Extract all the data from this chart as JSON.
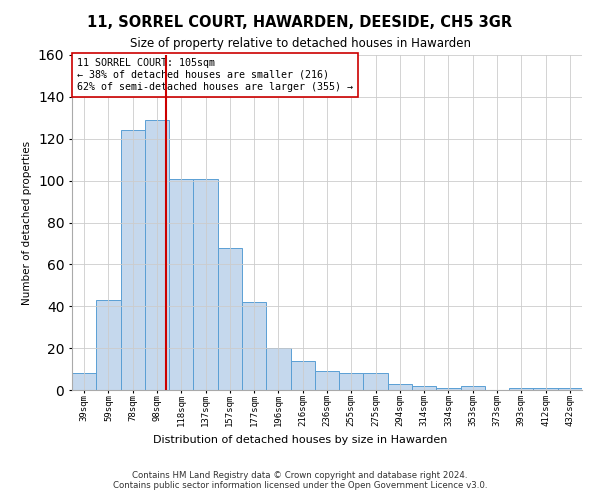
{
  "title": "11, SORREL COURT, HAWARDEN, DEESIDE, CH5 3GR",
  "subtitle": "Size of property relative to detached houses in Hawarden",
  "xlabel": "Distribution of detached houses by size in Hawarden",
  "ylabel": "Number of detached properties",
  "categories": [
    "39sqm",
    "59sqm",
    "78sqm",
    "98sqm",
    "118sqm",
    "137sqm",
    "157sqm",
    "177sqm",
    "196sqm",
    "216sqm",
    "236sqm",
    "255sqm",
    "275sqm",
    "294sqm",
    "314sqm",
    "334sqm",
    "353sqm",
    "373sqm",
    "393sqm",
    "412sqm",
    "432sqm"
  ],
  "values": [
    8,
    43,
    124,
    129,
    101,
    101,
    68,
    42,
    20,
    14,
    9,
    8,
    8,
    3,
    2,
    1,
    2,
    0,
    1,
    1,
    1
  ],
  "bar_color": "#c5d8ed",
  "bar_edge_color": "#5a9fd4",
  "highlight_line_color": "#cc0000",
  "annotation_text": "11 SORREL COURT: 105sqm\n← 38% of detached houses are smaller (216)\n62% of semi-detached houses are larger (355) →",
  "annotation_box_color": "#ffffff",
  "annotation_box_edge_color": "#cc0000",
  "ylim": [
    0,
    160
  ],
  "yticks": [
    0,
    20,
    40,
    60,
    80,
    100,
    120,
    140,
    160
  ],
  "background_color": "#ffffff",
  "grid_color": "#cccccc",
  "footer_line1": "Contains HM Land Registry data © Crown copyright and database right 2024.",
  "footer_line2": "Contains public sector information licensed under the Open Government Licence v3.0."
}
